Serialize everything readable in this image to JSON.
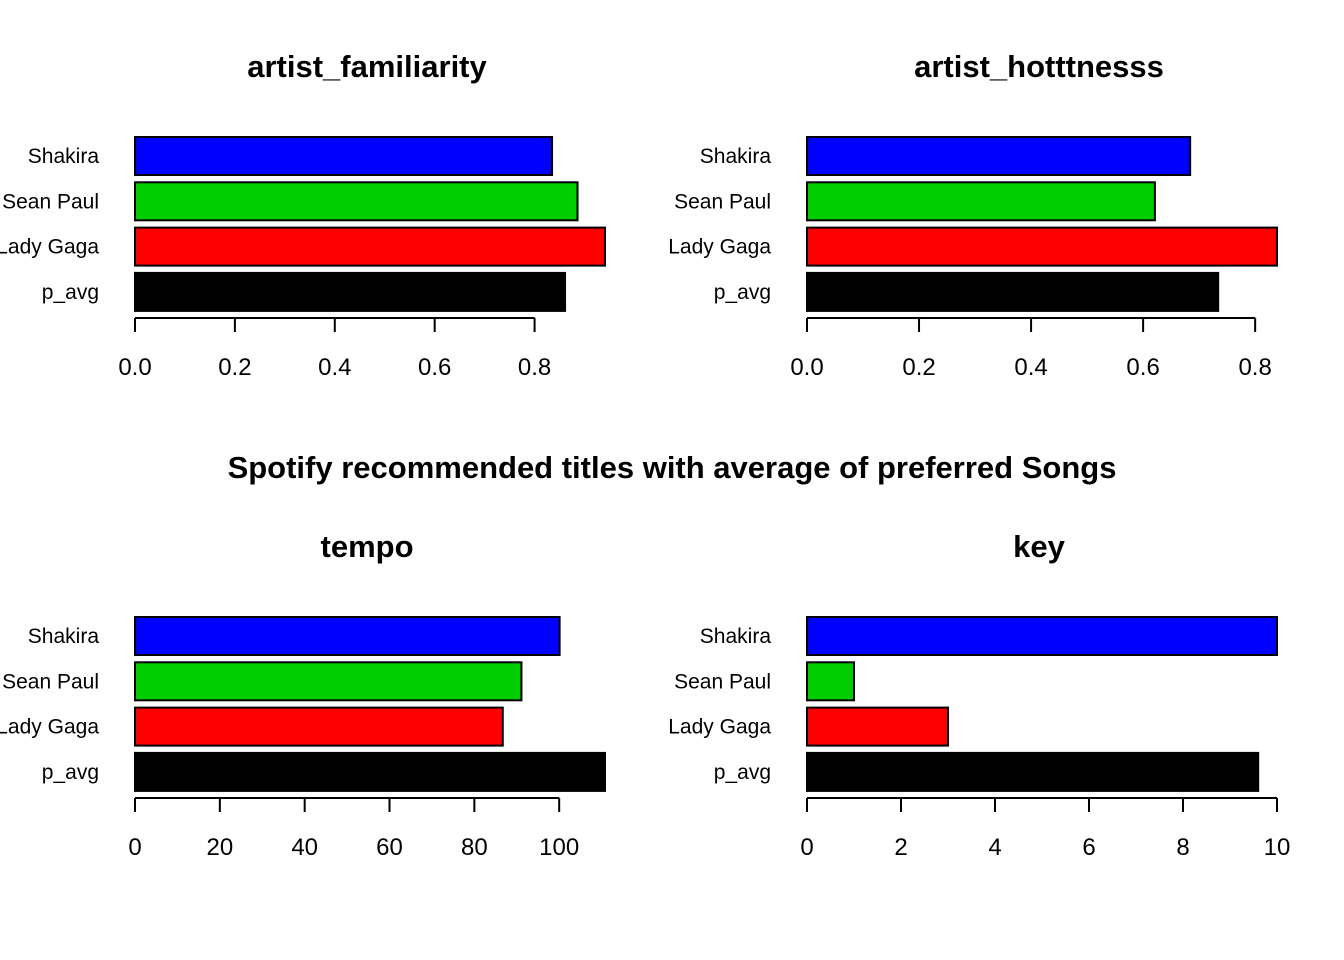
{
  "figure_title": "Spotify recommended titles with average of preferred Songs",
  "colors": {
    "Shakira": "#0000ff",
    "Sean Paul": "#00cd00",
    "Lady Gaga": "#ff0000",
    "p_avg": "#000000"
  },
  "chart_data": [
    {
      "type": "bar",
      "orientation": "horizontal",
      "title": "artist_familiarity",
      "categories": [
        "Shakira",
        "Sean Paul",
        "Lady Gaga",
        "p_avg"
      ],
      "values": [
        0.835,
        0.886,
        0.941,
        0.861
      ],
      "xticks": [
        "0.0",
        "0.2",
        "0.4",
        "0.6",
        "0.8"
      ],
      "xtick_values": [
        0,
        0.2,
        0.4,
        0.6,
        0.8
      ],
      "xlim": [
        0,
        0.941
      ]
    },
    {
      "type": "bar",
      "orientation": "horizontal",
      "title": "artist_hotttnesss",
      "categories": [
        "Shakira",
        "Sean Paul",
        "Lady Gaga",
        "p_avg"
      ],
      "values": [
        0.684,
        0.621,
        0.839,
        0.734
      ],
      "xticks": [
        "0.0",
        "0.2",
        "0.4",
        "0.6",
        "0.8"
      ],
      "xtick_values": [
        0,
        0.2,
        0.4,
        0.6,
        0.8
      ],
      "xlim": [
        0,
        0.839
      ]
    },
    {
      "type": "bar",
      "orientation": "horizontal",
      "title": "tempo",
      "categories": [
        "Shakira",
        "Sean Paul",
        "Lady Gaga",
        "p_avg"
      ],
      "values": [
        100.1,
        91.1,
        86.7,
        110.8
      ],
      "xticks": [
        "0",
        "20",
        "40",
        "60",
        "80",
        "100"
      ],
      "xtick_values": [
        0,
        20,
        40,
        60,
        80,
        100
      ],
      "xlim": [
        0,
        110.8
      ]
    },
    {
      "type": "bar",
      "orientation": "horizontal",
      "title": "key",
      "categories": [
        "Shakira",
        "Sean Paul",
        "Lady Gaga",
        "p_avg"
      ],
      "values": [
        10,
        1,
        3,
        9.6
      ],
      "xticks": [
        "0",
        "2",
        "4",
        "6",
        "8",
        "10"
      ],
      "xtick_values": [
        0,
        2,
        4,
        6,
        8,
        10
      ],
      "xlim": [
        0,
        10
      ]
    }
  ]
}
